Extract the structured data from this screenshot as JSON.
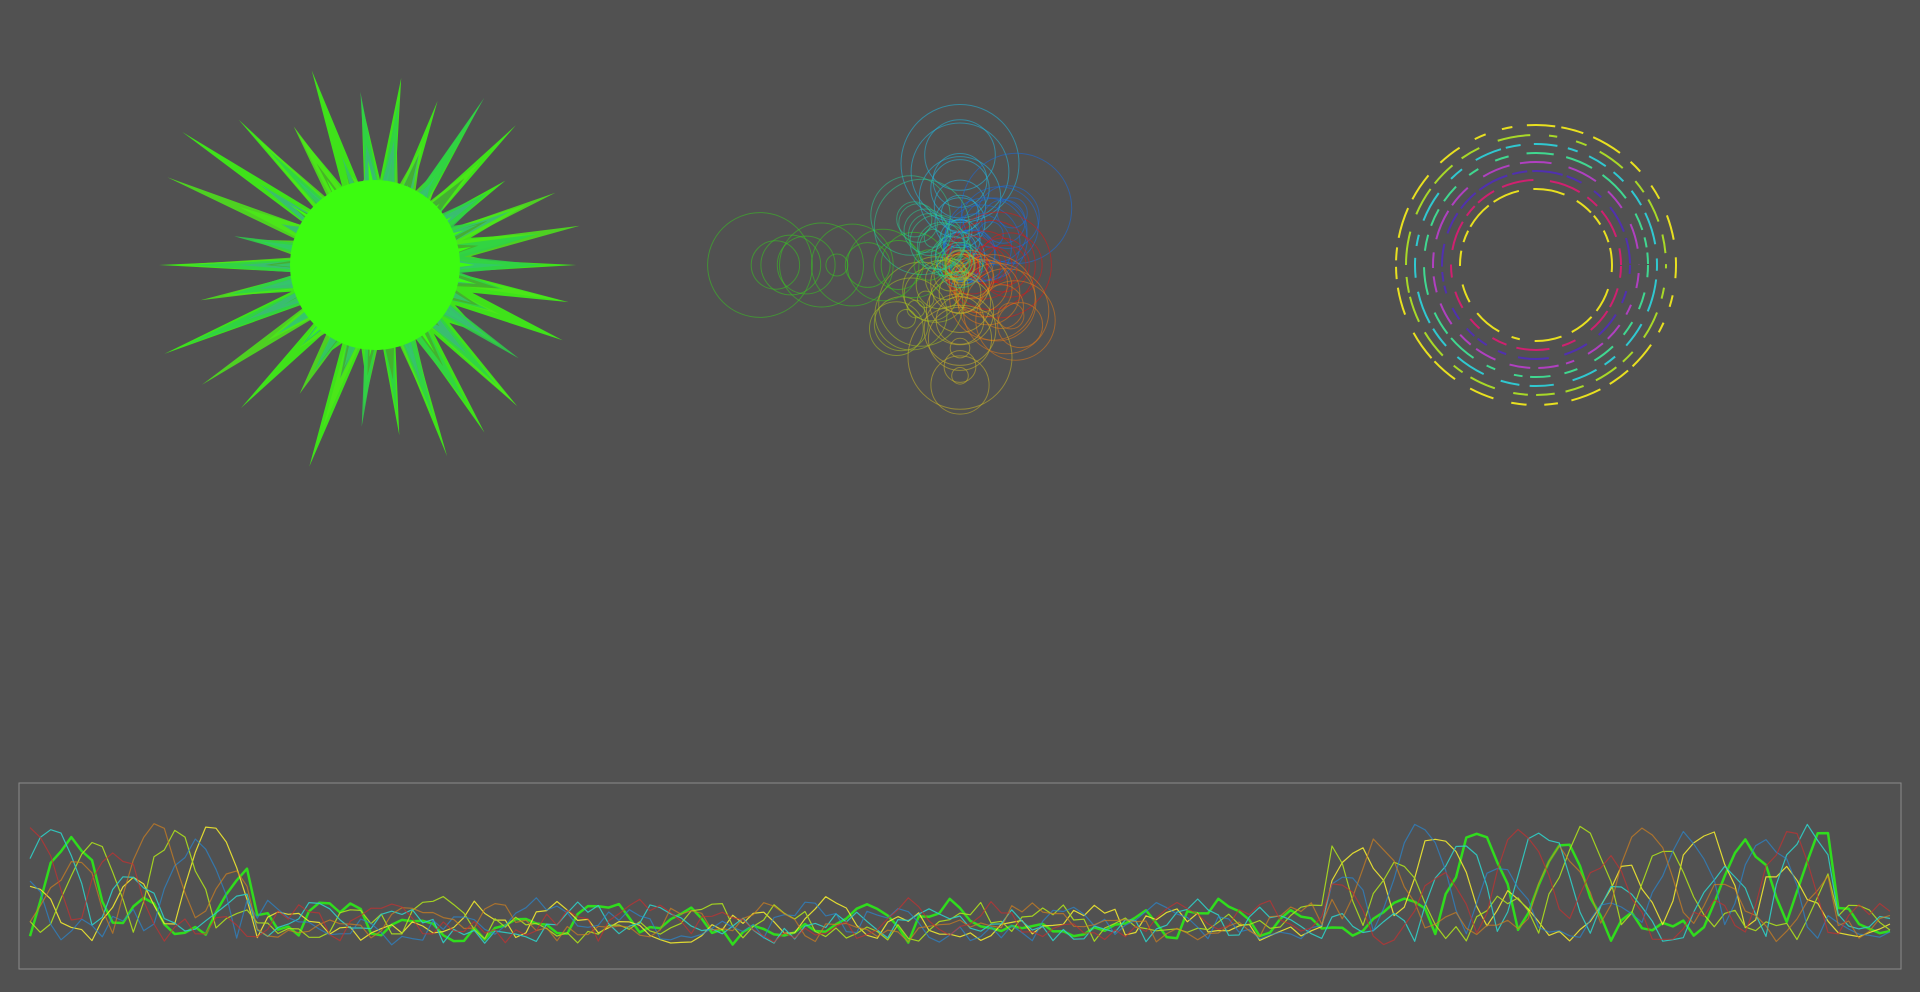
{
  "background_color": "#515151",
  "panels": {
    "blob": {
      "name": "spiky-blob",
      "primary_color": "#3cfc10",
      "shade_colors": [
        "#3cfc10",
        "#4ee61a",
        "#2ed04a",
        "#3cb878",
        "#46ac2a",
        "#34c86a"
      ]
    },
    "bubbles": {
      "name": "bubble-cluster",
      "arm_colors": [
        "#20b8e0",
        "#1a6ee0",
        "#e01818",
        "#e07818",
        "#c8b428",
        "#a8c020",
        "#38c820",
        "#28c890"
      ]
    },
    "rings": {
      "name": "dashed-ring-stack",
      "ring_colors": [
        "#e8e020",
        "#a8d828",
        "#30c8d0",
        "#40d890",
        "#b040c0",
        "#5030b0",
        "#d02070"
      ]
    },
    "waveform": {
      "name": "waveform-strip",
      "border_color": "#8a8a8a",
      "series_colors": [
        "#2ee41a",
        "#e8e030",
        "#a8d820",
        "#30c8c0",
        "#2a88d0",
        "#d08020",
        "#c83030"
      ]
    }
  }
}
